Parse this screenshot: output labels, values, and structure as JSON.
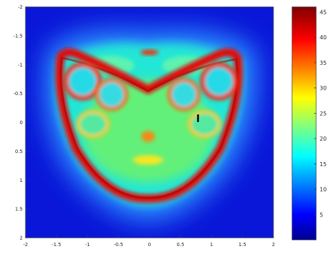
{
  "chart_data": {
    "type": "heatmap",
    "title": "",
    "xlabel": "",
    "ylabel": "",
    "xlim": [
      -2,
      2
    ],
    "ylim": [
      -2,
      2
    ],
    "y_axis_inverted": true,
    "x_ticks": [
      "-2",
      "-1.5",
      "-1",
      "-0.5",
      "0",
      "0.5",
      "1",
      "1.5",
      "2"
    ],
    "x_tick_values": [
      -2,
      -1.5,
      -1,
      -0.5,
      0,
      0.5,
      1,
      1.5,
      2
    ],
    "y_ticks": [
      "-2",
      "-1.5",
      "-1",
      "-0.5",
      "0",
      "0.5",
      "1",
      "1.5",
      "2"
    ],
    "y_tick_values": [
      -2,
      -1.5,
      -1,
      -0.5,
      0,
      0.5,
      1,
      1.5,
      2
    ],
    "colormap": "jet",
    "colorbar": {
      "range": [
        0,
        46
      ],
      "ticks": [
        "5",
        "10",
        "15",
        "20",
        "25",
        "30",
        "35",
        "40",
        "45"
      ],
      "tick_values": [
        5,
        10,
        15,
        20,
        25,
        30,
        35,
        40,
        45
      ]
    },
    "field_description": "face-shaped intensity pattern: red bands (~45) form a V-shaped outer contour from (-1.5,-1) to (0,1.3) to (1.5,-1), eye rings around (-0.85,-0.35) and (0.85,-0.35), nose and mouth features near (0,0.3) and (0,0.7); interior green-cyan (~15-25); background dark blue (~2)",
    "annotations": [
      "I"
    ],
    "grid": false,
    "legend": "none"
  }
}
